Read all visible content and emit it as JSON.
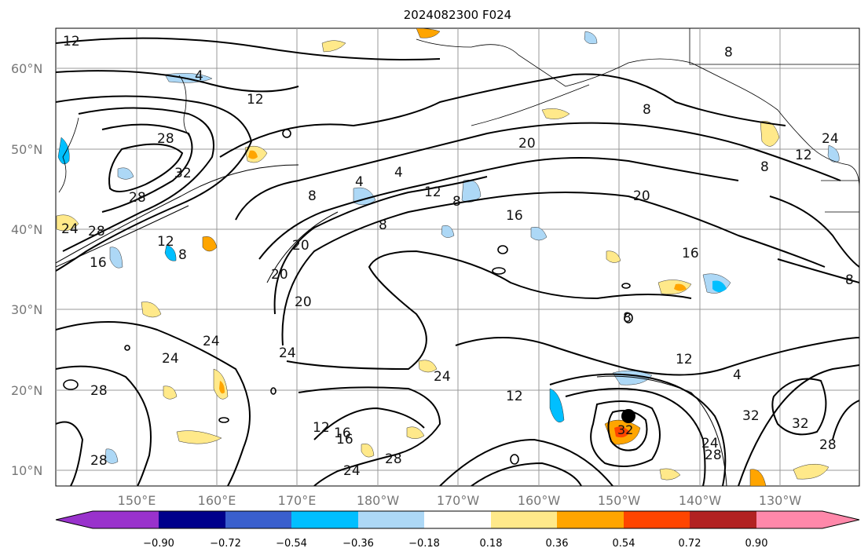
{
  "title": "2024082300 F024",
  "map": {
    "lat_labels": [
      "60°N",
      "50°N",
      "40°N",
      "30°N",
      "20°N",
      "10°N"
    ],
    "lon_labels": [
      "150°E",
      "160°E",
      "170°E",
      "180°W",
      "170°W",
      "160°W",
      "150°W",
      "140°W",
      "130°W"
    ],
    "contour_labels": [
      "12",
      "4",
      "12",
      "28",
      "32",
      "28",
      "24",
      "28",
      "16",
      "8",
      "20",
      "20",
      "8",
      "4",
      "4",
      "12",
      "8",
      "8",
      "20",
      "16",
      "8",
      "20",
      "16",
      "12",
      "24",
      "24",
      "24",
      "28",
      "28",
      "24",
      "20",
      "8",
      "4",
      "12",
      "16",
      "12",
      "16",
      "28",
      "24",
      "32",
      "28",
      "24",
      "32",
      "28",
      "8",
      "8",
      "24",
      "12",
      "12",
      "8"
    ],
    "storm_marker": "hurricane-center"
  },
  "colorbar": {
    "ticks": [
      "−0.90",
      "−0.72",
      "−0.54",
      "−0.36",
      "−0.18",
      "0.18",
      "0.36",
      "0.54",
      "0.72",
      "0.90"
    ],
    "colors": [
      "#9932cc",
      "#00008b",
      "#3a5fcd",
      "#00bfff",
      "#add8f6",
      "#ffffff",
      "#ffe98a",
      "#ffa500",
      "#ff4500",
      "#b22222",
      "#ff88aa"
    ]
  }
}
